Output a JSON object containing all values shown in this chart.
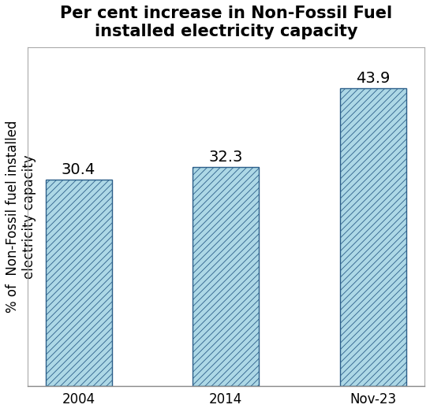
{
  "title": "Per cent increase in Non-Fossil Fuel\ninstalled electricity capacity",
  "categories": [
    "2004",
    "2014",
    "Nov-23"
  ],
  "values": [
    30.4,
    32.3,
    43.9
  ],
  "ylabel": "% of  Non-Fossil fuel installed\nelectricity capacity",
  "bar_color": "#add8e6",
  "bar_edge_color": "#2c5f8a",
  "hatch": "////",
  "hatch_color": "#5b9bd5",
  "ylim": [
    0,
    50
  ],
  "title_fontsize": 15,
  "label_fontsize": 12,
  "tick_fontsize": 12,
  "value_fontsize": 14,
  "background_color": "#ffffff",
  "plot_bg_color": "#ffffff",
  "bar_width": 0.45,
  "spine_color": "#aaaaaa",
  "bottom_spine_color": "#888888"
}
